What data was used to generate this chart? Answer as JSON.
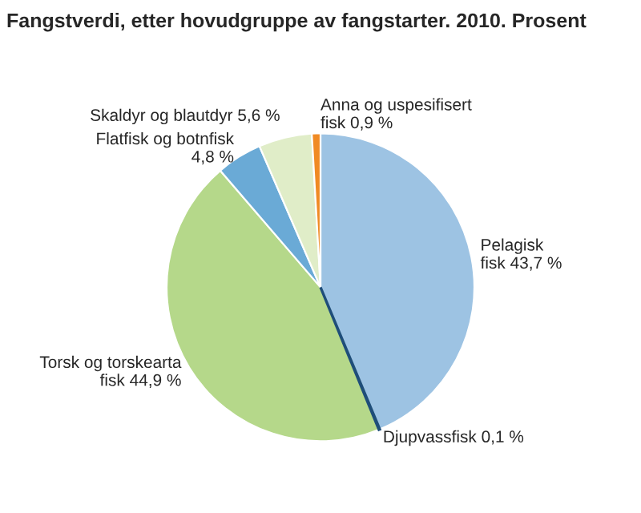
{
  "chart_data": {
    "type": "pie",
    "title": "Fangstverdi, etter hovudgruppe av fangstarter. 2010. Prosent",
    "categories": [
      "Pelagisk\nfisk",
      "Djupvassfisk",
      "Torsk og torskearta\nfisk",
      "Flatfisk og botnfisk\n",
      "Skaldyr og blautdyr",
      "Anna og uspesifisert\nfisk"
    ],
    "values": [
      43.7,
      0.1,
      44.9,
      4.8,
      5.6,
      0.9
    ],
    "value_labels": [
      "43,7 %",
      "0,1 %",
      "44,9 %",
      "4,8 %",
      "5,6 %",
      "0,9 %"
    ],
    "colors": [
      "#9dc3e3",
      "#1f4e79",
      "#b5d88a",
      "#6aaad6",
      "#e0edc8",
      "#f08a24"
    ],
    "legend": false
  }
}
